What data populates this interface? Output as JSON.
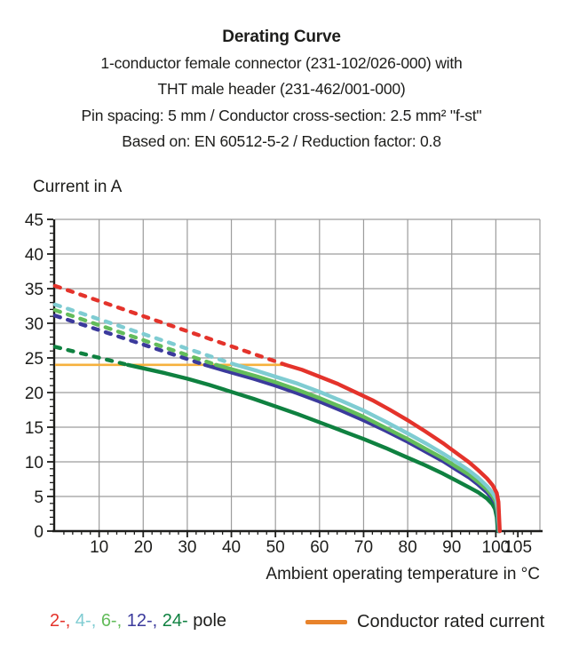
{
  "header": {
    "title": "Derating Curve",
    "lines": [
      "1-conductor female connector (231-102/026-000) with",
      "THT male header (231-462/001-000)",
      "Pin spacing: 5 mm / Conductor cross-section: 2.5 mm² \"f-st\"",
      "Based on: EN 60512-5-2 / Reduction factor: 0.8"
    ]
  },
  "chart_data": {
    "type": "line",
    "title": "Derating Curve",
    "xlabel": "Ambient operating temperature in °C",
    "ylabel": "Current in A",
    "xlim": [
      0,
      110
    ],
    "ylim": [
      0,
      45
    ],
    "grid": "on",
    "x_major_ticks": [
      10,
      20,
      30,
      40,
      50,
      60,
      70,
      80,
      90,
      100,
      105
    ],
    "x_minor_step": 2,
    "y_major_ticks": [
      0,
      5,
      10,
      15,
      20,
      25,
      30,
      35,
      40,
      45
    ],
    "y_minor_step": 1,
    "colors": {
      "axis": "#1d1d1b",
      "grid": "#9c9c9c",
      "rated_line": "#f6b13d"
    },
    "rated_current": {
      "label": "Conductor rated current",
      "value": 24,
      "x_start": 0,
      "x_end": 52.4,
      "color": "#f6b13d"
    },
    "series": [
      {
        "name": "2-pole",
        "color": "#e4332b",
        "dashed_points": [
          [
            0,
            35.4
          ],
          [
            52.3,
            24
          ]
        ],
        "solid_points": [
          [
            52.3,
            24
          ],
          [
            56,
            23.3
          ],
          [
            60,
            22.3
          ],
          [
            64,
            21.3
          ],
          [
            68,
            20.1
          ],
          [
            72,
            18.9
          ],
          [
            76,
            17.5
          ],
          [
            80,
            16
          ],
          [
            84,
            14.4
          ],
          [
            88,
            12.7
          ],
          [
            91,
            11.3
          ],
          [
            94,
            9.9
          ],
          [
            96,
            8.8
          ],
          [
            98,
            7.6
          ],
          [
            99.3,
            6.6
          ],
          [
            100.2,
            5.5
          ],
          [
            100.6,
            4.2
          ],
          [
            100.9,
            0
          ]
        ]
      },
      {
        "name": "4-pole",
        "color": "#7fccd2",
        "dashed_points": [
          [
            0,
            32.7
          ],
          [
            41,
            24
          ]
        ],
        "solid_points": [
          [
            41,
            24
          ],
          [
            46,
            23.1
          ],
          [
            50,
            22.3
          ],
          [
            55,
            21.3
          ],
          [
            60,
            20.1
          ],
          [
            65,
            18.8
          ],
          [
            70,
            17.4
          ],
          [
            75,
            15.8
          ],
          [
            80,
            14.1
          ],
          [
            84,
            12.7
          ],
          [
            88,
            11.2
          ],
          [
            91,
            10
          ],
          [
            94,
            8.7
          ],
          [
            96,
            7.7
          ],
          [
            98,
            6.5
          ],
          [
            99.3,
            5.5
          ],
          [
            100.1,
            4.6
          ],
          [
            100.5,
            3.2
          ],
          [
            100.8,
            0
          ]
        ]
      },
      {
        "name": "6-pole",
        "color": "#63bc5b",
        "dashed_points": [
          [
            0,
            31.9
          ],
          [
            36.5,
            24
          ]
        ],
        "solid_points": [
          [
            36.5,
            24
          ],
          [
            41,
            23.2
          ],
          [
            46,
            22.3
          ],
          [
            50,
            21.5
          ],
          [
            55,
            20.4
          ],
          [
            60,
            19.2
          ],
          [
            65,
            17.9
          ],
          [
            70,
            16.5
          ],
          [
            75,
            14.9
          ],
          [
            80,
            13.3
          ],
          [
            84,
            11.9
          ],
          [
            88,
            10.5
          ],
          [
            91,
            9.3
          ],
          [
            94,
            8.1
          ],
          [
            96,
            7.1
          ],
          [
            98,
            6
          ],
          [
            99.3,
            5
          ],
          [
            100,
            4.2
          ],
          [
            100.4,
            2.8
          ],
          [
            100.75,
            0
          ]
        ]
      },
      {
        "name": "12-pole",
        "color": "#3b3a9c",
        "dashed_points": [
          [
            0,
            31.1
          ],
          [
            34,
            24
          ]
        ],
        "solid_points": [
          [
            34,
            24
          ],
          [
            40,
            22.9
          ],
          [
            45,
            22
          ],
          [
            50,
            21
          ],
          [
            55,
            19.9
          ],
          [
            60,
            18.7
          ],
          [
            65,
            17.4
          ],
          [
            70,
            16
          ],
          [
            75,
            14.5
          ],
          [
            80,
            12.9
          ],
          [
            84,
            11.5
          ],
          [
            88,
            10.1
          ],
          [
            91,
            8.9
          ],
          [
            94,
            7.7
          ],
          [
            96,
            6.7
          ],
          [
            98,
            5.6
          ],
          [
            99.2,
            4.7
          ],
          [
            100,
            3.9
          ],
          [
            100.35,
            2.4
          ],
          [
            100.7,
            0
          ]
        ]
      },
      {
        "name": "24-pole",
        "color": "#0f8140",
        "dashed_points": [
          [
            0,
            26.6
          ],
          [
            16.5,
            24
          ]
        ],
        "solid_points": [
          [
            16.5,
            24
          ],
          [
            20,
            23.5
          ],
          [
            25,
            22.8
          ],
          [
            30,
            22
          ],
          [
            35,
            21.1
          ],
          [
            40,
            20.1
          ],
          [
            45,
            19.1
          ],
          [
            50,
            18
          ],
          [
            55,
            16.9
          ],
          [
            60,
            15.7
          ],
          [
            65,
            14.5
          ],
          [
            70,
            13.3
          ],
          [
            75,
            12
          ],
          [
            80,
            10.6
          ],
          [
            84,
            9.5
          ],
          [
            88,
            8.3
          ],
          [
            91,
            7.3
          ],
          [
            94,
            6.3
          ],
          [
            96,
            5.6
          ],
          [
            98,
            4.7
          ],
          [
            99.2,
            3.9
          ],
          [
            99.8,
            3.2
          ],
          [
            100.2,
            2
          ],
          [
            100.5,
            0
          ]
        ]
      }
    ]
  },
  "legend": {
    "pole_items": [
      {
        "label": "2-",
        "color": "#e4332b"
      },
      {
        "label": "4-",
        "color": "#7fccd2"
      },
      {
        "label": "6-",
        "color": "#63bc5b"
      },
      {
        "label": "12-",
        "color": "#3b3a9c"
      },
      {
        "label": "24-",
        "color": "#0f8140"
      }
    ],
    "separator": ", ",
    "pole_suffix": "pole",
    "rated_label": "Conductor rated current",
    "rated_swatch_color": "#e8832b"
  }
}
